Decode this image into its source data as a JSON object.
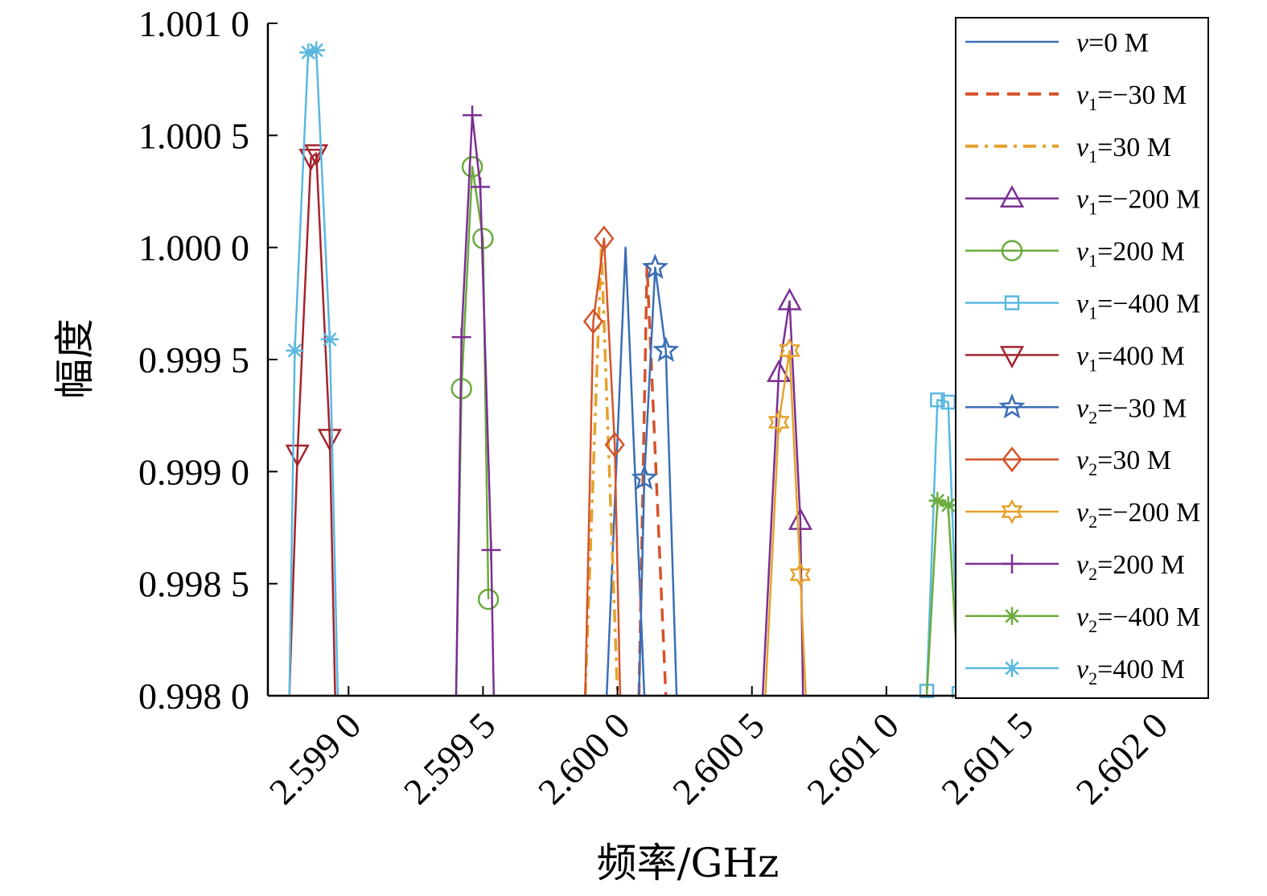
{
  "chart_data": {
    "type": "line",
    "xlabel": "频率/GHz",
    "ylabel": "幅度",
    "xlim": [
      2.5987,
      2.6022
    ],
    "ylim": [
      0.998,
      1.001
    ],
    "xticks": [
      2.599,
      2.5995,
      2.6,
      2.6005,
      2.601,
      2.6015,
      2.602
    ],
    "xtick_labels": [
      "2.599 0",
      "2.599 5",
      "2.600 0",
      "2.600 5",
      "2.601 0",
      "2.601 5",
      "2.602 0"
    ],
    "yticks": [
      0.998,
      0.9985,
      0.999,
      0.9995,
      1.0,
      1.0005,
      1.001
    ],
    "ytick_labels": [
      "0.998 0",
      "0.998 5",
      "0.999 0",
      "0.999 5",
      "1.000 0",
      "1.000 5",
      "1.001 0"
    ],
    "grid": false,
    "legend_position": "right",
    "series": [
      {
        "name": "v=0 M",
        "legend": {
          "sym": "v",
          "sub": "",
          "val": "=0 M"
        },
        "color": "#3a6eb5",
        "dash": "solid",
        "marker": "none",
        "x": [
          2.59996,
          2.60003,
          2.6001
        ],
        "y": [
          0.998,
          1.0,
          0.998
        ]
      },
      {
        "name": "v1=−30 M",
        "legend": {
          "sym": "v",
          "sub": "1",
          "val": "=−30 M"
        },
        "color": "#d5532a",
        "dash": "dashed",
        "marker": "none",
        "x": [
          2.60008,
          2.60011,
          2.60018
        ],
        "y": [
          0.998,
          0.99992,
          0.998
        ]
      },
      {
        "name": "v1=30 M",
        "legend": {
          "sym": "v",
          "sub": "1",
          "val": "=30 M"
        },
        "color": "#e5a12b",
        "dash": "dashdot",
        "marker": "none",
        "x": [
          2.59988,
          2.59994,
          2.6
        ],
        "y": [
          0.998,
          1.0,
          0.998
        ]
      },
      {
        "name": "v1=−200 M",
        "legend": {
          "sym": "v",
          "sub": "1",
          "val": "=−200 M"
        },
        "color": "#7b2f93",
        "dash": "solid",
        "marker": "triangle-up",
        "x": [
          2.60054,
          2.6006,
          2.60064,
          2.60068,
          2.60069
        ],
        "y": [
          0.998,
          0.99944,
          0.99976,
          0.99878,
          0.998
        ]
      },
      {
        "name": "v1=200 M",
        "legend": {
          "sym": "v",
          "sub": "1",
          "val": "=200 M"
        },
        "color": "#6aab3c",
        "dash": "solid",
        "marker": "circle",
        "x": [
          2.5994,
          2.59942,
          2.59946,
          2.5995,
          2.59952
        ],
        "y": [
          0.998,
          0.99937,
          1.00036,
          1.00004,
          0.99843
        ]
      },
      {
        "name": "v1=−400 M",
        "legend": {
          "sym": "v",
          "sub": "1",
          "val": "=−400 M"
        },
        "color": "#5ab8e0",
        "dash": "solid",
        "marker": "square",
        "x": [
          2.60115,
          2.60119,
          2.60123,
          2.60127
        ],
        "y": [
          0.99802,
          0.99932,
          0.99931,
          0.99801
        ]
      },
      {
        "name": "v1=400 M",
        "legend": {
          "sym": "v",
          "sub": "1",
          "val": "=400 M"
        },
        "color": "#a4232d",
        "dash": "solid",
        "marker": "triangle-down",
        "x": [
          2.59878,
          2.59881,
          2.59886,
          2.59888,
          2.59893,
          2.59895
        ],
        "y": [
          0.998,
          0.99908,
          1.0004,
          1.00042,
          0.99915,
          0.998
        ]
      },
      {
        "name": "v2=−30 M",
        "legend": {
          "sym": "v",
          "sub": "2",
          "val": "=−30 M"
        },
        "color": "#3a6eb5",
        "dash": "solid",
        "marker": "star",
        "x": [
          2.60008,
          2.6001,
          2.60014,
          2.60018,
          2.60022
        ],
        "y": [
          0.998,
          0.99897,
          0.99991,
          0.99954,
          0.998
        ]
      },
      {
        "name": "v2=30 M",
        "legend": {
          "sym": "v",
          "sub": "2",
          "val": "=30 M"
        },
        "color": "#d5532a",
        "dash": "solid",
        "marker": "diamond",
        "x": [
          2.59988,
          2.59991,
          2.59995,
          2.59999,
          2.60001
        ],
        "y": [
          0.998,
          0.99967,
          1.00004,
          0.99912,
          0.998
        ]
      },
      {
        "name": "v2=−200 M",
        "legend": {
          "sym": "v",
          "sub": "2",
          "val": "=−200 M"
        },
        "color": "#e5a12b",
        "dash": "solid",
        "marker": "hexagram",
        "x": [
          2.60055,
          2.6006,
          2.60064,
          2.60068,
          2.6007
        ],
        "y": [
          0.998,
          0.99922,
          0.99954,
          0.99854,
          0.998
        ]
      },
      {
        "name": "v2=200 M",
        "legend": {
          "sym": "v",
          "sub": "2",
          "val": "=200 M"
        },
        "color": "#7b2f93",
        "dash": "solid",
        "marker": "plus",
        "x": [
          2.5994,
          2.59942,
          2.59946,
          2.59949,
          2.59953,
          2.59954
        ],
        "y": [
          0.998,
          0.9996,
          1.00059,
          1.00027,
          0.99865,
          0.998
        ]
      },
      {
        "name": "v2=−400 M",
        "legend": {
          "sym": "v",
          "sub": "2",
          "val": "=−400 M"
        },
        "color": "#6aab3c",
        "dash": "solid",
        "marker": "asterisk",
        "x": [
          2.60115,
          2.60119,
          2.60123,
          2.60127
        ],
        "y": [
          0.998,
          0.99887,
          0.99885,
          0.998
        ]
      },
      {
        "name": "v2=400 M",
        "legend": {
          "sym": "v",
          "sub": "2",
          "val": "=400 M"
        },
        "color": "#5ab8e0",
        "dash": "solid",
        "marker": "asterisk",
        "x": [
          2.59878,
          2.5988,
          2.59885,
          2.59888,
          2.59893,
          2.59896
        ],
        "y": [
          0.998,
          0.99954,
          1.00087,
          1.00088,
          0.99959,
          0.998
        ]
      }
    ]
  }
}
